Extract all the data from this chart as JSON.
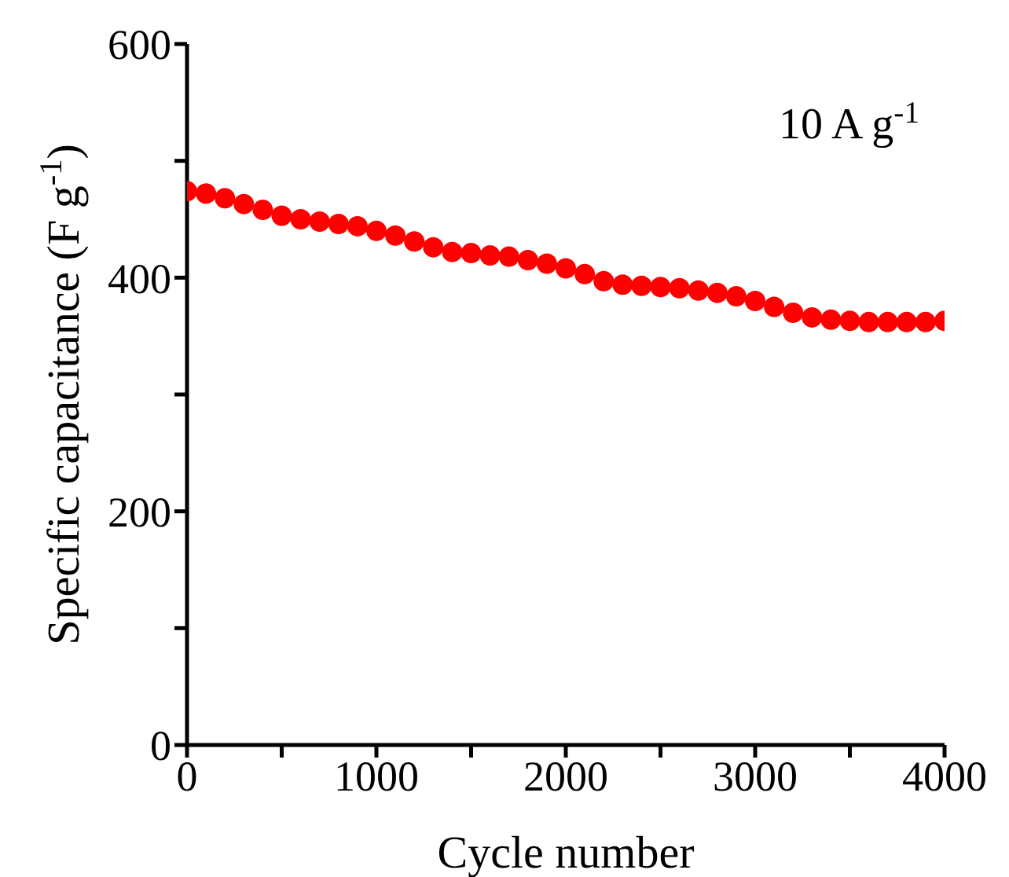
{
  "chart_data": {
    "type": "scatter",
    "xlabel": "Cycle number",
    "ylabel": "Specific capacitance (F g$^{-1}$)",
    "annotations": [
      "10 A g$^{-1}$"
    ],
    "x": [
      0,
      100,
      200,
      300,
      400,
      500,
      600,
      700,
      800,
      900,
      1000,
      1100,
      1200,
      1300,
      1400,
      1500,
      1600,
      1700,
      1800,
      1900,
      2000,
      2100,
      2200,
      2300,
      2400,
      2500,
      2600,
      2700,
      2800,
      2900,
      3000,
      3100,
      3200,
      3300,
      3400,
      3500,
      3600,
      3700,
      3800,
      3900,
      4000
    ],
    "series": [
      {
        "color": "#ff0000",
        "values": [
          474,
          472,
          468,
          463,
          458,
          453,
          450,
          448,
          446,
          444,
          440,
          436,
          431,
          426,
          422,
          421,
          419,
          418,
          415,
          412,
          408,
          403,
          397,
          394,
          393,
          392,
          391,
          389,
          387,
          384,
          380,
          375,
          370,
          366,
          364,
          363,
          362,
          362,
          362,
          362,
          363
        ]
      }
    ],
    "marker": "circle",
    "xlim": [
      0,
      4000
    ],
    "xticks": [
      0,
      {
        "value": 500,
        "label": null
      },
      1000,
      {
        "value": 1500,
        "label": null
      },
      2000,
      {
        "value": 2500,
        "label": null
      },
      3000,
      {
        "value": 3500,
        "label": null
      },
      4000
    ],
    "ylim": [
      0,
      600
    ],
    "yticks": [
      0,
      {
        "value": 100,
        "label": null
      },
      200,
      {
        "value": 300,
        "label": null
      },
      400,
      {
        "value": 500,
        "label": null
      },
      600
    ],
    "grid": false,
    "legend": false
  }
}
